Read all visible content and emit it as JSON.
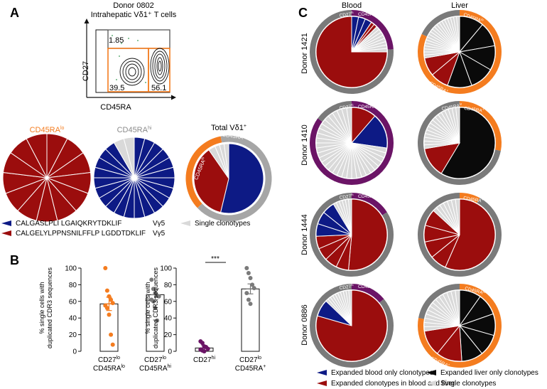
{
  "colors": {
    "navy": "#0d1a85",
    "red": "#9b0d0d",
    "grey": "#d9d9d9",
    "black": "#0a0a0a",
    "orange": "#f47c1f",
    "dark_grey": "#7a7a7a",
    "purple": "#6b1466",
    "mid_grey": "#a6a6a6"
  },
  "panelA": {
    "label": "A",
    "flow": {
      "title_line1": "Donor 0802",
      "title_line2": "Intrahepatic Vδ1⁺ T cells",
      "y_axis": "CD27",
      "x_axis": "CD45RA",
      "gate_top": "1.85",
      "gate_bl": "39.5",
      "gate_br": "56.1"
    },
    "pie_lo": {
      "title": "CD45RA",
      "sup": "lo",
      "n_slices": 13
    },
    "pie_hi": {
      "title": "CD45RA",
      "sup": "hi"
    },
    "pie_total": {
      "title": "Total Vδ1",
      "sup": "+",
      "ring_orange": "CD45RA",
      "ring_orange_sup": "lo",
      "ring_grey": "CD45RA",
      "ring_grey_sup": "hi"
    },
    "legend": [
      {
        "seq": "CALGASLPLI LGAIQKRYTDKLIF",
        "v": "Vγ5",
        "color": "navy"
      },
      {
        "seq": "CALGELYLPPNSNILFFLP LGDDTDKLIF",
        "v": "Vγ5",
        "color": "red"
      },
      {
        "seq": "Single clonotypes",
        "color": "grey"
      }
    ]
  },
  "panelB": {
    "label": "B",
    "ylabel_line1": "% single cells with",
    "ylabel_line2": "duplicated CDR3 sequences",
    "significance": "***",
    "chart_data": [
      {
        "type": "bar",
        "ylim": [
          0,
          100
        ],
        "yticks": [
          0,
          20,
          40,
          60,
          80,
          100
        ],
        "ylabel": "% single cells with duplicated CDR3 sequences",
        "categories": [
          {
            "line1": "CD27",
            "sup1": "lo",
            "line2": "CD45RA",
            "sup2": "lo"
          },
          {
            "line1": "CD27",
            "sup1": "lo",
            "line2": "CD45RA",
            "sup2": "hi"
          }
        ],
        "values": [
          57,
          68
        ],
        "errors": [
          8,
          6
        ],
        "point_colors": [
          "orange",
          "dark_grey"
        ],
        "points": [
          [
            100,
            73,
            66,
            62,
            58,
            55,
            52,
            44,
            20,
            8
          ],
          [
            86,
            75,
            70,
            67,
            66,
            62,
            60,
            52,
            37
          ]
        ]
      },
      {
        "type": "bar",
        "ylim": [
          0,
          100
        ],
        "yticks": [
          0,
          20,
          40,
          60,
          80,
          100
        ],
        "ylabel": "% single cells with duplicated CDR3 sequences",
        "categories": [
          {
            "line1": "CD27",
            "sup1": "hi",
            "line2": "",
            "sup2": ""
          },
          {
            "line1": "CD27",
            "sup1": "lo",
            "line2": "CD45RA",
            "sup2": "+"
          }
        ],
        "values": [
          4,
          75
        ],
        "errors": [
          3,
          6
        ],
        "point_colors": [
          "purple",
          "dark_grey"
        ],
        "points": [
          [
            12,
            10,
            6,
            5,
            3,
            2,
            1,
            0
          ],
          [
            100,
            94,
            88,
            80,
            76,
            70,
            62,
            57
          ]
        ]
      }
    ]
  },
  "panelC": {
    "label": "C",
    "col_blood": "Blood",
    "col_liver": "Liver",
    "ring_labels": {
      "cd27hi": "CD27",
      "cd27hi_sup": "hi",
      "cd45ra": "CD45RA",
      "cd45ra_sup": "+",
      "cd45ra_lo_sup": "lo"
    },
    "donors": [
      {
        "name": "Donor 1421",
        "blood": {
          "ring": [
            [
              "purple",
              0.24
            ],
            [
              "dark_grey",
              0.76
            ]
          ],
          "slices": [
            [
              "navy",
              2,
              3
            ],
            [
              "red",
              1,
              2
            ],
            [
              "grey",
              1,
              8
            ],
            [
              "red",
              48,
              1
            ]
          ]
        },
        "liver": {
          "ring": [
            [
              "orange",
              0.82
            ],
            [
              "dark_grey",
              0.18
            ]
          ],
          "slices": [
            [
              "black",
              8,
              5
            ],
            [
              "red",
              6,
              2
            ],
            [
              "grey",
              1,
              20
            ]
          ]
        }
      },
      {
        "name": "Donor 1410",
        "blood": {
          "ring": [
            [
              "purple",
              0.85
            ],
            [
              "dark_grey",
              0.15
            ]
          ],
          "slices": [
            [
              "red",
              5,
              1
            ],
            [
              "navy",
              7,
              1
            ],
            [
              "grey",
              1,
              32
            ]
          ]
        },
        "liver": {
          "ring": [
            [
              "orange",
              0.28
            ],
            [
              "dark_grey",
              0.72
            ]
          ],
          "slices": [
            [
              "black",
              34,
              1
            ],
            [
              "red",
              8,
              1
            ],
            [
              "grey",
              1,
              16
            ]
          ]
        }
      },
      {
        "name": "Donor 1444",
        "blood": {
          "ring": [
            [
              "purple",
              0.16
            ],
            [
              "dark_grey",
              0.84
            ]
          ],
          "slices": [
            [
              "red",
              36,
              1
            ],
            [
              "red",
              4,
              4
            ],
            [
              "navy",
              4,
              3
            ],
            [
              "grey",
              1,
              6
            ]
          ]
        },
        "liver": {
          "ring": [
            [
              "orange",
              0.08
            ],
            [
              "dark_grey",
              0.92
            ]
          ],
          "slices": [
            [
              "red",
              30,
              1
            ],
            [
              "red",
              4,
              4
            ],
            [
              "grey",
              1,
              7
            ]
          ]
        }
      },
      {
        "name": "Donor 0886",
        "blood": {
          "ring": [
            [
              "purple",
              0.14
            ],
            [
              "dark_grey",
              0.86
            ]
          ],
          "slices": [
            [
              "red",
              62,
              1
            ],
            [
              "navy",
              6,
              1
            ],
            [
              "grey",
              1,
              10
            ]
          ]
        },
        "liver": {
          "ring": [
            [
              "orange",
              0.78
            ],
            [
              "dark_grey",
              0.22
            ]
          ],
          "slices": [
            [
              "black",
              5,
              5
            ],
            [
              "red",
              6,
              2
            ],
            [
              "grey",
              1,
              14
            ]
          ]
        }
      }
    ],
    "legend": [
      {
        "label": "Expanded blood only clonotypes",
        "color": "navy"
      },
      {
        "label": "Expanded liver only clonotypes",
        "color": "black"
      },
      {
        "label": "Expanded clonotypes in blood and liver",
        "color": "red"
      },
      {
        "label": "Single clonotypes",
        "color": "grey"
      }
    ]
  }
}
